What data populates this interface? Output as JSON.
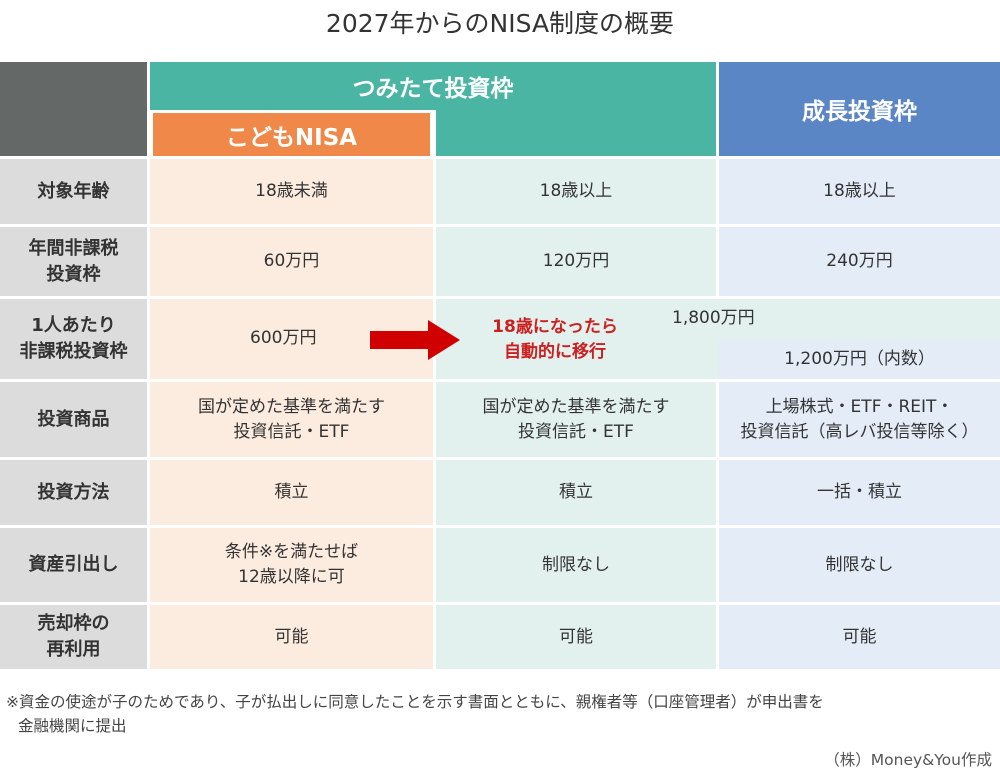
{
  "title": "2027年からのNISA制度の概要",
  "headers": {
    "tsumitate": "つみたて投資枠",
    "kodomo": "こどもNISA",
    "seicho": "成長投資枠"
  },
  "colors": {
    "corner": "#646866",
    "tsumitate": "#4bb5a3",
    "kodomo": "#f0884a",
    "seicho": "#5a86c5",
    "arrow": "#d00000"
  },
  "rows": [
    {
      "label": "対象年齢",
      "kodomo": "18歳未満",
      "tsumitate": "18歳以上",
      "seicho": "18歳以上"
    },
    {
      "label": "年間非課税投資枠",
      "kodomo": "60万円",
      "tsumitate": "120万円",
      "seicho": "240万円"
    },
    {
      "label": "1人あたり非課税投資枠",
      "kodomo": "600万円",
      "shared": "1,800万円",
      "seicho": "1,200万円（内数）",
      "arrow_text_1": "18歳になったら",
      "arrow_text_2": "自動的に移行",
      "arrow_icon": "right-arrow-icon"
    },
    {
      "label": "投資商品",
      "kodomo_1": "国が定めた基準を満たす",
      "kodomo_2": "投資信託・ETF",
      "tsumitate_1": "国が定めた基準を満たす",
      "tsumitate_2": "投資信託・ETF",
      "seicho_1": "上場株式・ETF・REIT・",
      "seicho_2": "投資信託（高レバ投信等除く）"
    },
    {
      "label": "投資方法",
      "kodomo": "積立",
      "tsumitate": "積立",
      "seicho": "一括・積立"
    },
    {
      "label": "資産引出し",
      "kodomo_1": "条件※を満たせば",
      "kodomo_2": "12歳以降に可",
      "tsumitate": "制限なし",
      "seicho": "制限なし"
    },
    {
      "label": "売却枠の再利用",
      "kodomo": "可能",
      "tsumitate": "可能",
      "seicho": "可能"
    }
  ],
  "row_labels_split": {
    "r1_1": "年間非課税",
    "r1_2": "投資枠",
    "r2_1": "1人あたり",
    "r2_2": "非課税投資枠",
    "r6_1": "売却枠の",
    "r6_2": "再利用"
  },
  "footnote_1": "※資金の使途が子のためであり、子が払出しに同意したことを示す書面とともに、親権者等（口座管理者）が申出書を",
  "footnote_2": "金融機関に提出",
  "credit": "（株）Money&You作成"
}
